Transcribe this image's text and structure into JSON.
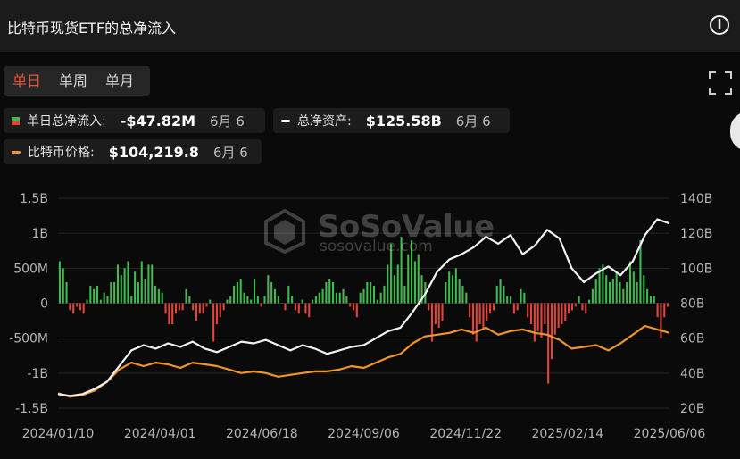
{
  "header": {
    "title": "比特币现货ETF的总净流入",
    "info_icon": "info-icon"
  },
  "tabs": [
    {
      "label": "单日",
      "active": true
    },
    {
      "label": "单周",
      "active": false
    },
    {
      "label": "单月",
      "active": false
    }
  ],
  "legend": {
    "daily_flow": {
      "label": "单日总净流入:",
      "value": "-$47.82M",
      "date": "6月 6"
    },
    "net_assets": {
      "label": "总净资产:",
      "value": "$125.58B",
      "date": "6月 6"
    },
    "btc_price": {
      "label": "比特币价格:",
      "value": "$104,219.8",
      "date": "6月 6"
    }
  },
  "watermark": {
    "name": "SoSoValue",
    "site": "sosovalue.com"
  },
  "colors": {
    "inflow": "#3fb950",
    "outflow": "#e0463b",
    "net_assets_line": "#f2f2f2",
    "price_line": "#f0942c",
    "active_tab": "#e8533a"
  },
  "chart_data": {
    "type": "bar",
    "x_start": "2024/01/10",
    "x_end": "2025/06/06",
    "x_tick_labels": [
      "2024/01/10",
      "2024/04/01",
      "2024/06/18",
      "2024/09/06",
      "2024/11/22",
      "2025/02/14",
      "2025/06/06"
    ],
    "left_axis": {
      "ticks": [
        "1.5B",
        "1B",
        "500M",
        "0",
        "-500M",
        "-1B",
        "-1.5B"
      ],
      "range": [
        -1.5,
        1.5
      ],
      "unit": "B USD"
    },
    "right_axis": {
      "ticks": [
        "140B",
        "120B",
        "100B",
        "80B",
        "60B",
        "40B",
        "20B"
      ],
      "range": [
        20,
        140
      ],
      "unit": "B USD"
    },
    "grid": true,
    "series": [
      {
        "name": "单日总净流入",
        "type": "bar",
        "axis": "left",
        "values": [
          0.6,
          0.5,
          0.3,
          -0.1,
          -0.15,
          -0.05,
          -0.1,
          -0.15,
          0.05,
          0.25,
          0.2,
          0.25,
          0.05,
          0.15,
          0.1,
          0.3,
          0.3,
          0.55,
          0.4,
          0.5,
          0.6,
          0.1,
          0.45,
          0.3,
          0.6,
          0.35,
          0.55,
          0.55,
          0.25,
          0.2,
          0.15,
          -0.15,
          -0.3,
          -0.3,
          -0.15,
          -0.1,
          -0.1,
          0.2,
          0.1,
          -0.1,
          -0.25,
          -0.15,
          -0.15,
          -0.05,
          0.05,
          -0.55,
          -0.3,
          -0.2,
          -0.1,
          0.05,
          0.1,
          0.25,
          0.3,
          0.35,
          0.15,
          0.1,
          0.05,
          0.35,
          0.1,
          -0.05,
          0.1,
          0.4,
          0.3,
          0.2,
          0.1,
          0.0,
          -0.1,
          0.25,
          0.1,
          -0.1,
          -0.15,
          0.05,
          -0.15,
          -0.2,
          0.05,
          0.1,
          0.15,
          0.2,
          0.3,
          0.35,
          0.3,
          0.15,
          0.15,
          0.2,
          0.1,
          -0.05,
          -0.1,
          -0.2,
          0.15,
          0.2,
          0.3,
          0.3,
          0.25,
          0.05,
          0.15,
          0.25,
          0.55,
          0.85,
          0.4,
          0.55,
          0.95,
          0.25,
          0.7,
          0.9,
          0.6,
          0.7,
          0.4,
          0.3,
          -0.1,
          -0.55,
          -0.3,
          -0.35,
          -0.25,
          0.3,
          0.45,
          0.4,
          0.5,
          0.35,
          0.25,
          0.15,
          -0.2,
          -0.45,
          -0.55,
          -0.3,
          -0.35,
          -0.25,
          -0.15,
          -0.1,
          0.25,
          0.35,
          0.25,
          0.1,
          0.1,
          -0.15,
          -0.1,
          0.2,
          0.15,
          -0.2,
          -0.3,
          -0.55,
          -0.4,
          -0.5,
          -0.3,
          -1.15,
          -0.8,
          -0.45,
          -0.35,
          -0.3,
          -0.25,
          -0.15,
          -0.1,
          -0.05,
          0.1,
          -0.1,
          -0.15,
          0.05,
          0.2,
          0.35,
          0.5,
          0.55,
          0.4,
          0.3,
          0.35,
          0.45,
          0.3,
          0.2,
          0.3,
          0.6,
          0.45,
          0.3,
          0.9,
          0.4,
          0.2,
          0.1,
          0.1,
          -0.2,
          -0.5,
          -0.2,
          -0.05
        ]
      },
      {
        "name": "总净资产",
        "type": "line",
        "axis": "right",
        "points": [
          [
            0.0,
            28
          ],
          [
            0.02,
            27
          ],
          [
            0.04,
            28
          ],
          [
            0.06,
            31
          ],
          [
            0.08,
            35
          ],
          [
            0.1,
            44
          ],
          [
            0.12,
            53
          ],
          [
            0.14,
            56
          ],
          [
            0.16,
            54
          ],
          [
            0.18,
            57
          ],
          [
            0.2,
            55
          ],
          [
            0.22,
            58
          ],
          [
            0.24,
            54
          ],
          [
            0.26,
            52
          ],
          [
            0.28,
            55
          ],
          [
            0.3,
            58
          ],
          [
            0.32,
            57
          ],
          [
            0.34,
            59
          ],
          [
            0.36,
            56
          ],
          [
            0.38,
            53
          ],
          [
            0.4,
            56
          ],
          [
            0.42,
            54
          ],
          [
            0.44,
            51
          ],
          [
            0.46,
            53
          ],
          [
            0.48,
            55
          ],
          [
            0.5,
            56
          ],
          [
            0.52,
            60
          ],
          [
            0.54,
            64
          ],
          [
            0.56,
            66
          ],
          [
            0.58,
            75
          ],
          [
            0.6,
            85
          ],
          [
            0.62,
            98
          ],
          [
            0.64,
            105
          ],
          [
            0.66,
            108
          ],
          [
            0.68,
            112
          ],
          [
            0.7,
            118
          ],
          [
            0.72,
            114
          ],
          [
            0.74,
            119
          ],
          [
            0.76,
            108
          ],
          [
            0.78,
            113
          ],
          [
            0.8,
            122
          ],
          [
            0.82,
            117
          ],
          [
            0.84,
            100
          ],
          [
            0.86,
            92
          ],
          [
            0.88,
            97
          ],
          [
            0.9,
            101
          ],
          [
            0.92,
            96
          ],
          [
            0.94,
            104
          ],
          [
            0.96,
            119
          ],
          [
            0.98,
            128
          ],
          [
            1.0,
            125.58
          ]
        ]
      },
      {
        "name": "比特币价格",
        "type": "line",
        "axis": "right",
        "points": [
          [
            0.0,
            28.5
          ],
          [
            0.02,
            26.5
          ],
          [
            0.04,
            27.5
          ],
          [
            0.06,
            30
          ],
          [
            0.08,
            35
          ],
          [
            0.1,
            42
          ],
          [
            0.12,
            46
          ],
          [
            0.14,
            44
          ],
          [
            0.16,
            46
          ],
          [
            0.18,
            45
          ],
          [
            0.2,
            43
          ],
          [
            0.22,
            46
          ],
          [
            0.24,
            45
          ],
          [
            0.26,
            44
          ],
          [
            0.28,
            42
          ],
          [
            0.3,
            40
          ],
          [
            0.32,
            41
          ],
          [
            0.34,
            40
          ],
          [
            0.36,
            38
          ],
          [
            0.38,
            39
          ],
          [
            0.4,
            40
          ],
          [
            0.42,
            41
          ],
          [
            0.44,
            41
          ],
          [
            0.46,
            42
          ],
          [
            0.48,
            44
          ],
          [
            0.5,
            43
          ],
          [
            0.52,
            46
          ],
          [
            0.54,
            49
          ],
          [
            0.56,
            51
          ],
          [
            0.58,
            57
          ],
          [
            0.6,
            61
          ],
          [
            0.62,
            62
          ],
          [
            0.64,
            63
          ],
          [
            0.66,
            65
          ],
          [
            0.68,
            63
          ],
          [
            0.7,
            66
          ],
          [
            0.72,
            62
          ],
          [
            0.74,
            64
          ],
          [
            0.76,
            65
          ],
          [
            0.78,
            63
          ],
          [
            0.8,
            62
          ],
          [
            0.82,
            59
          ],
          [
            0.84,
            54
          ],
          [
            0.86,
            55
          ],
          [
            0.88,
            56
          ],
          [
            0.9,
            53
          ],
          [
            0.92,
            57
          ],
          [
            0.94,
            62
          ],
          [
            0.96,
            67
          ],
          [
            0.98,
            65
          ],
          [
            1.0,
            63
          ]
        ]
      }
    ]
  }
}
